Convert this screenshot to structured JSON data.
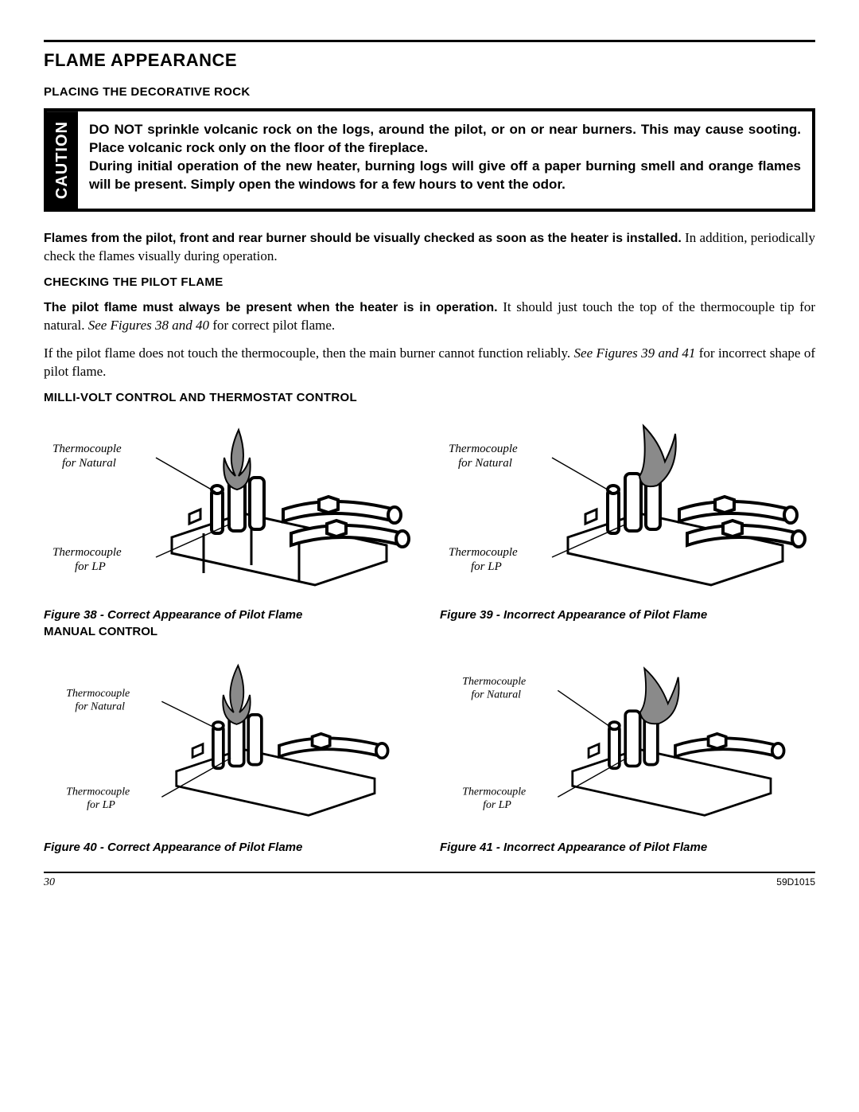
{
  "page": {
    "title": "FLAME APPEARANCE",
    "section1_head": "PLACING THE DECORATIVE ROCK",
    "caution_label": "CAUTION",
    "caution_text": "DO NOT sprinkle volcanic rock on the logs, around the pilot, or on or near burners. This may cause sooting. Place volcanic rock only on the floor of the fireplace.\nDuring initial operation of the new heater, burning logs will give off a paper burning smell and orange flames will be present. Simply open the windows for a few hours to vent the odor.",
    "para1_bold": "Flames from the pilot, front and rear burner should be visually checked as soon as the heater is installed.",
    "para1_rest": " In addition, periodically check the flames visually during operation.",
    "section2_head": "CHECKING THE PILOT FLAME",
    "para2_bold": "The pilot flame must always be present when the heater is in operation.",
    "para2_rest": " It should just touch the top of the thermocouple tip for natural. ",
    "para2_ital": "See Figures 38 and 40",
    "para2_tail": " for correct pilot flame.",
    "para3_a": "If the pilot flame does not touch the thermocouple, then the main burner cannot function reliably. ",
    "para3_ital": "See Figures 39 and 41",
    "para3_tail": " for incorrect shape of pilot flame.",
    "section3_head": "MILLI-VOLT CONTROL AND THERMOSTAT CONTROL",
    "manual_head": "MANUAL CONTROL",
    "callout_upper": "Thermocouple for Natural",
    "callout_lower": "Thermocouple for LP",
    "fig38_caption": "Figure 38 - Correct Appearance of Pilot Flame",
    "fig39_caption": "Figure 39 - Incorrect Appearance of Pilot Flame",
    "fig40_caption": "Figure 40 - Correct Appearance of Pilot Flame",
    "fig41_caption": "Figure 41 - Incorrect Appearance of Pilot Flame",
    "footer_page": "30",
    "footer_code": "59D1015"
  },
  "style": {
    "flame_correct_fill": "#8a8a8a",
    "flame_incorrect_fill": "#8a8a8a",
    "line_color": "#000000",
    "line_width_thin": 2,
    "line_width_thick": 4
  }
}
